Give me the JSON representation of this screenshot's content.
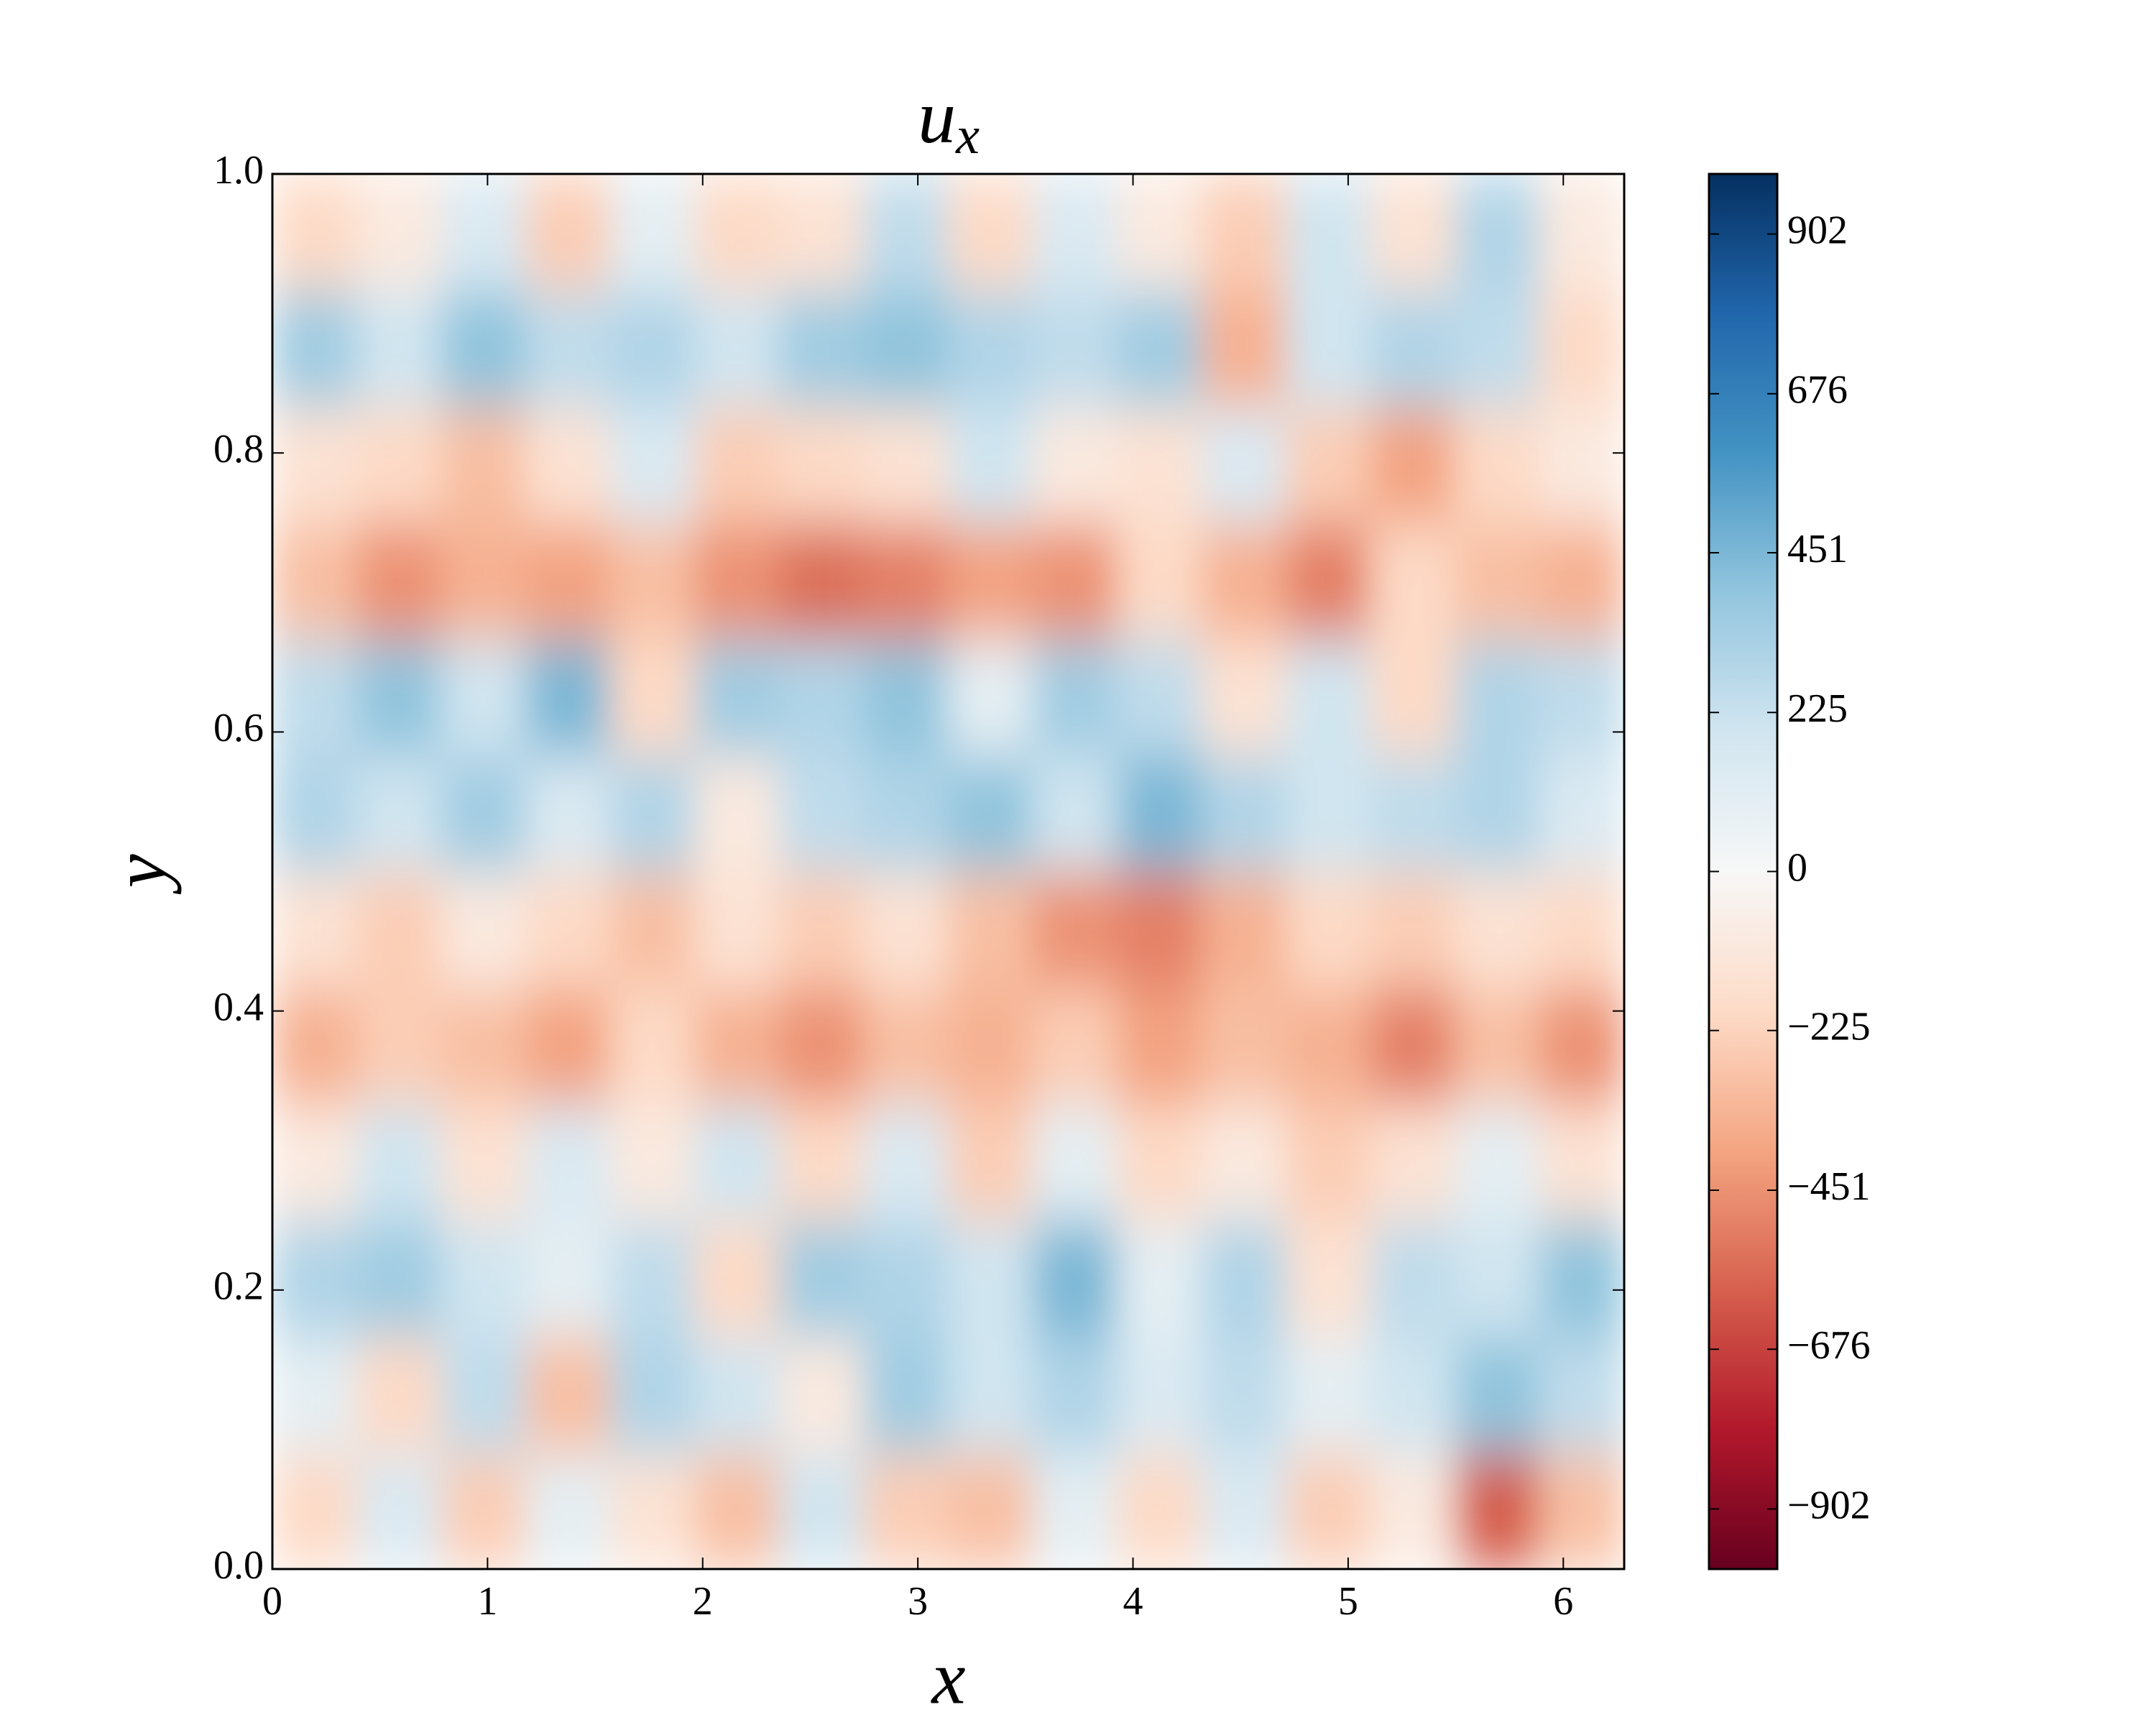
{
  "chart_data": {
    "type": "heatmap",
    "title": "u",
    "title_subscript": "x",
    "xlabel": "x",
    "ylabel": "y",
    "xlim": [
      0,
      6.283
    ],
    "ylim": [
      0,
      1
    ],
    "xticks": [
      0,
      1,
      2,
      3,
      4,
      5,
      6
    ],
    "yticks": [
      {
        "value": 0,
        "label": "0.0"
      },
      0.2,
      0.4,
      0.6,
      0.8,
      {
        "value": 1,
        "label": "1.0"
      }
    ],
    "clim": [
      -987,
      987
    ],
    "cticks": [
      {
        "value": -902,
        "label": "−902"
      },
      {
        "value": -676,
        "label": "−676"
      },
      {
        "value": -451,
        "label": "−451"
      },
      {
        "value": -225,
        "label": "−225"
      },
      0,
      225,
      451,
      676,
      902
    ],
    "colormap": [
      "#67001f",
      "#b2182b",
      "#d6604d",
      "#f4a582",
      "#fddbc7",
      "#f7f7f7",
      "#d1e5f0",
      "#92c5de",
      "#4393c3",
      "#2166ac",
      "#053061"
    ],
    "z": [
      [
        -200,
        150,
        -250,
        100,
        -150,
        -300,
        200,
        -250,
        -300,
        100,
        -200,
        150,
        -250,
        -100,
        -600,
        -300
      ],
      [
        100,
        -200,
        250,
        -300,
        300,
        200,
        -100,
        350,
        200,
        300,
        150,
        250,
        100,
        200,
        400,
        250
      ],
      [
        300,
        350,
        200,
        100,
        250,
        -200,
        350,
        300,
        200,
        450,
        100,
        300,
        -150,
        250,
        200,
        400
      ],
      [
        -100,
        200,
        -150,
        150,
        -100,
        200,
        -200,
        150,
        -250,
        100,
        -200,
        -100,
        -250,
        -150,
        100,
        -150
      ],
      [
        -350,
        -250,
        -300,
        -400,
        -200,
        -350,
        -450,
        -300,
        -350,
        -250,
        -400,
        -300,
        -350,
        -500,
        -300,
        -450
      ],
      [
        -150,
        -250,
        -100,
        -200,
        -300,
        -150,
        -250,
        -150,
        -300,
        -450,
        -500,
        -350,
        -200,
        -250,
        -150,
        -200
      ],
      [
        300,
        200,
        350,
        150,
        300,
        -100,
        250,
        300,
        400,
        200,
        450,
        300,
        200,
        250,
        300,
        150
      ],
      [
        250,
        400,
        200,
        450,
        -200,
        350,
        300,
        400,
        100,
        350,
        250,
        -150,
        200,
        -200,
        300,
        250
      ],
      [
        -300,
        -450,
        -350,
        -400,
        -300,
        -450,
        -550,
        -500,
        -400,
        -450,
        -200,
        -350,
        -500,
        -200,
        -300,
        -350
      ],
      [
        -150,
        -200,
        -300,
        -150,
        150,
        -250,
        -200,
        -150,
        200,
        -100,
        -150,
        150,
        -250,
        -400,
        -200,
        -100
      ],
      [
        350,
        200,
        400,
        250,
        300,
        200,
        350,
        400,
        300,
        250,
        350,
        -350,
        200,
        300,
        250,
        -200
      ],
      [
        -200,
        -100,
        150,
        -250,
        100,
        -200,
        -150,
        250,
        -200,
        150,
        -100,
        -250,
        200,
        -150,
        300,
        -100
      ]
    ]
  }
}
